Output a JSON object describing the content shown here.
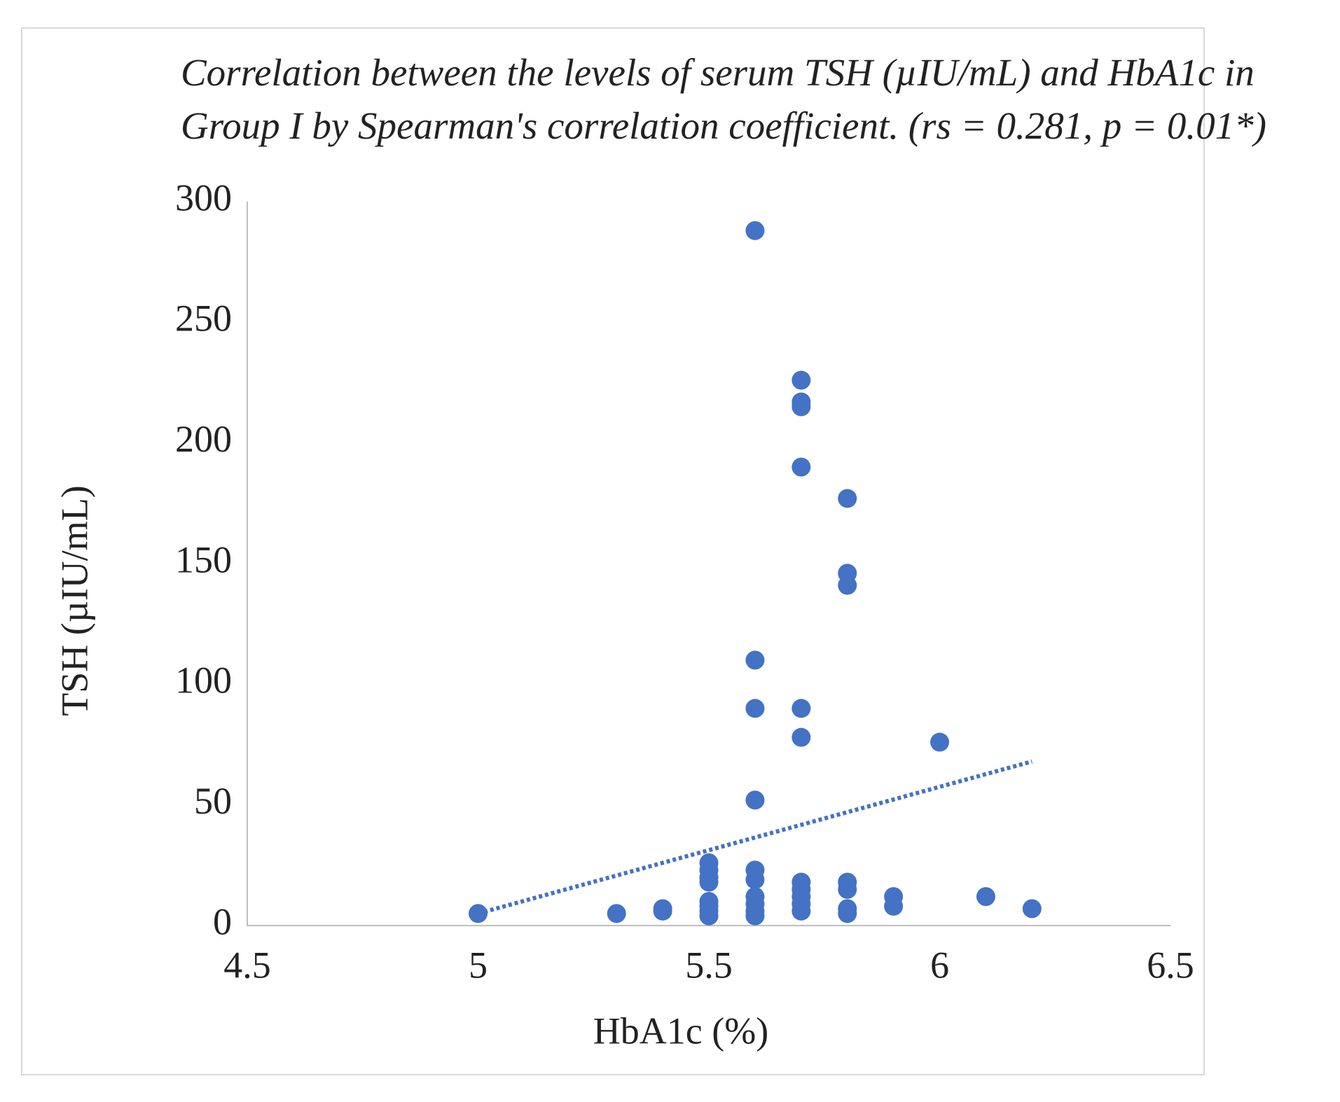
{
  "chart_data": {
    "type": "scatter",
    "title": "Correlation between the levels of serum TSH (µIU/mL) and HbA1c in Group I by Spearman's correlation coefficient. (rs = 0.281, p = 0.01*)",
    "x_label": "HbA1c (%)",
    "y_label": "TSH (µIU/mL)",
    "series": [
      {
        "name": "TSH",
        "color": "#4472c4",
        "x": [
          5.0,
          5.3,
          5.4,
          5.4,
          5.5,
          5.5,
          5.5,
          5.5,
          5.5,
          5.5,
          5.5,
          5.5,
          5.6,
          5.6,
          5.6,
          5.6,
          5.6,
          5.6,
          5.6,
          5.6,
          5.6,
          5.6,
          5.7,
          5.7,
          5.7,
          5.7,
          5.7,
          5.7,
          5.7,
          5.7,
          5.7,
          5.7,
          5.7,
          5.8,
          5.8,
          5.8,
          5.8,
          5.8,
          5.8,
          5.8,
          5.9,
          5.9,
          6.0,
          6.1,
          6.2
        ],
        "values": [
          5,
          5,
          7,
          6,
          26,
          23,
          20,
          18,
          10,
          8,
          6,
          4,
          288,
          110,
          90,
          52,
          23,
          19,
          12,
          9,
          6,
          4,
          226,
          217,
          215,
          190,
          90,
          78,
          18,
          15,
          12,
          9,
          6,
          177,
          146,
          141,
          18,
          15,
          7,
          5,
          12,
          8,
          76,
          12,
          7
        ]
      }
    ],
    "trendline": {
      "color": "#4472c4",
      "x": [
        5.0,
        6.2
      ],
      "values": [
        5,
        68
      ]
    },
    "xlim": [
      4.5,
      6.5
    ],
    "xticks": [
      4.5,
      5,
      5.5,
      6,
      6.5
    ],
    "ylim": [
      0,
      300
    ],
    "yticks": [
      0,
      50,
      100,
      150,
      200,
      250,
      300
    ],
    "grid": false
  }
}
